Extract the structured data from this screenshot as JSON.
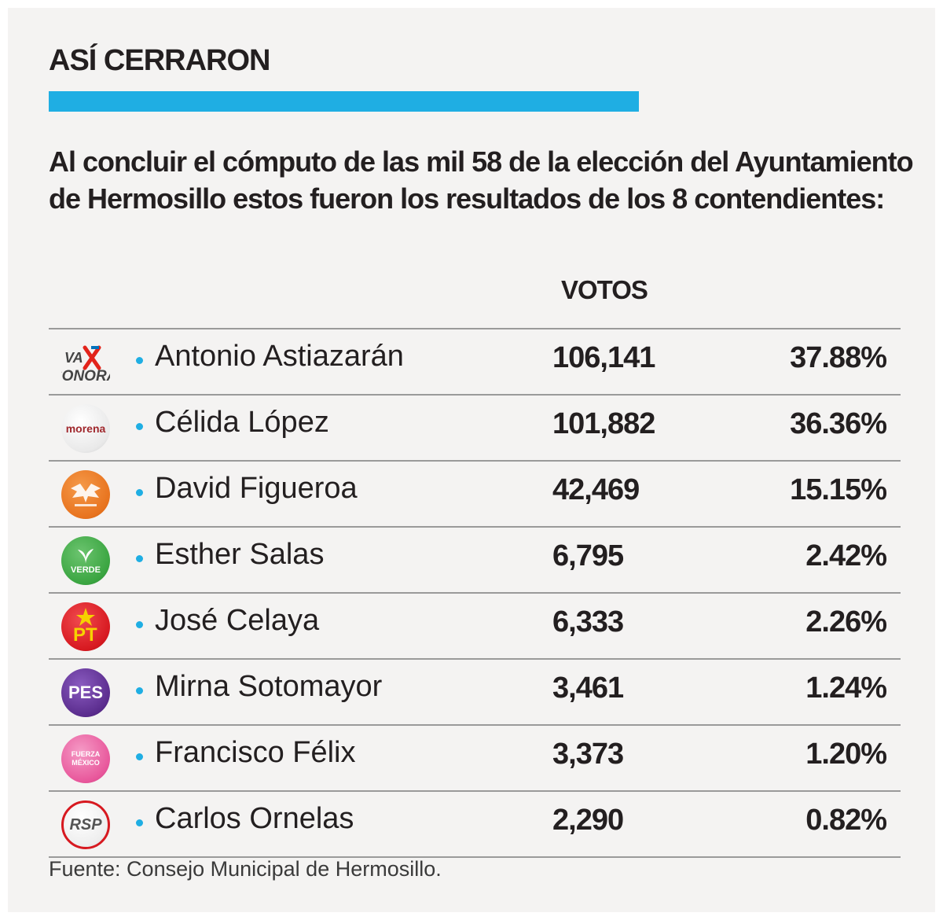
{
  "header": {
    "title": "ASÍ CERRARON",
    "accent_color": "#1faee3",
    "intro": "Al concluir el cómputo de las mil 58 de la elección del Ayuntamiento de Hermosillo estos fueron los resultados de los 8 contendientes:"
  },
  "table": {
    "column_votes": "VOTOS"
  },
  "chart_data": {
    "type": "table",
    "title": "ASÍ CERRARON",
    "columns": [
      "",
      "",
      "VOTOS",
      ""
    ],
    "rows": [
      {
        "party_logo": "VA X SONORA",
        "candidate": "Antonio Astiazarán",
        "votes": "106,141",
        "percent": "37.88%",
        "logo_icon": "va-x-sonora-logo",
        "logo_color": "#ffffff"
      },
      {
        "party_logo": "morena",
        "candidate": "Célida López",
        "votes": "101,882",
        "percent": "36.36%",
        "logo_icon": "morena-logo",
        "logo_color": "#ffffff"
      },
      {
        "party_logo": "",
        "candidate": "David Figueroa",
        "votes": "42,469",
        "percent": "15.15%",
        "logo_icon": "movimiento-ciudadano-logo",
        "logo_color": "#e8731e"
      },
      {
        "party_logo": "VERDE",
        "candidate": "Esther Salas",
        "votes": "6,795",
        "percent": "2.42%",
        "logo_icon": "partido-verde-logo",
        "logo_color": "#3aa541"
      },
      {
        "party_logo": "PT",
        "candidate": "José Celaya",
        "votes": "6,333",
        "percent": "2.26%",
        "logo_icon": "pt-logo",
        "logo_color": "#d71920"
      },
      {
        "party_logo": "PES",
        "candidate": "Mirna Sotomayor",
        "votes": "3,461",
        "percent": "1.24%",
        "logo_icon": "pes-logo",
        "logo_color": "#5b2d8e"
      },
      {
        "party_logo": "FUERZA MÉXICO",
        "candidate": "Francisco Félix",
        "votes": "3,373",
        "percent": "1.20%",
        "logo_icon": "fuerza-mexico-logo",
        "logo_color": "#e8579b"
      },
      {
        "party_logo": "RSP",
        "candidate": "Carlos Ornelas",
        "votes": "2,290",
        "percent": "0.82%",
        "logo_icon": "rsp-logo",
        "logo_color": "#ffffff"
      }
    ]
  },
  "footer": {
    "source": "Fuente: Consejo Municipal de Hermosillo."
  }
}
